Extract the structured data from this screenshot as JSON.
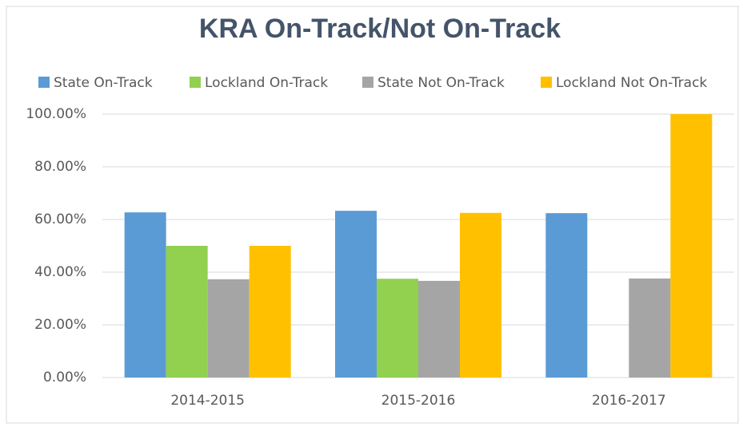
{
  "chart_data": {
    "type": "bar",
    "title": "KRA On-Track/Not On-Track",
    "categories": [
      "2014-2015",
      "2015-2016",
      "2016-2017"
    ],
    "series": [
      {
        "name": "State On-Track",
        "color": "#5b9bd5",
        "values": [
          62.7,
          63.3,
          62.4
        ]
      },
      {
        "name": "Lockland On-Track",
        "color": "#92d050",
        "values": [
          50,
          37.5,
          0
        ]
      },
      {
        "name": "State Not On-Track",
        "color": "#a5a5a5",
        "values": [
          37.3,
          36.7,
          37.6
        ]
      },
      {
        "name": "Lockland Not On-Track",
        "color": "#ffc000",
        "values": [
          50,
          62.5,
          100
        ]
      }
    ],
    "ylim": [
      0,
      100
    ],
    "yticks": [
      {
        "value": 0,
        "label": "0.00%"
      },
      {
        "value": 20,
        "label": "20.00%"
      },
      {
        "value": 40,
        "label": "40.00%"
      },
      {
        "value": 60,
        "label": "60.00%"
      },
      {
        "value": 80,
        "label": "80.00%"
      },
      {
        "value": 100,
        "label": "100.00%"
      }
    ],
    "grid": true,
    "legend": "top"
  }
}
